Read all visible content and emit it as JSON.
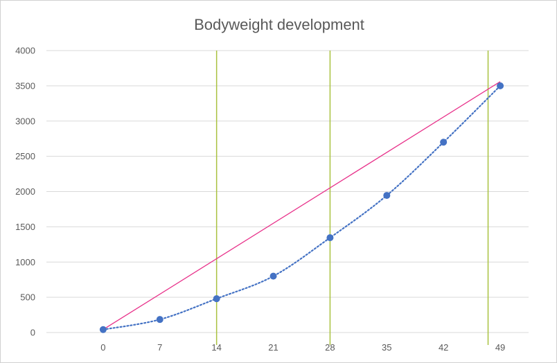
{
  "chart_data": {
    "type": "scatter",
    "title": "Bodyweight development",
    "xlabel": "",
    "ylabel": "",
    "xlim": [
      -7,
      52.5
    ],
    "ylim": [
      0,
      4000
    ],
    "xticks": [
      0,
      7,
      14,
      21,
      28,
      35,
      42,
      49
    ],
    "yticks": [
      0,
      500,
      1000,
      1500,
      2000,
      2500,
      3000,
      3500,
      4000
    ],
    "grid": "horizontal",
    "legend": "none",
    "series": [
      {
        "x": [
          0,
          7,
          14,
          21,
          28,
          35,
          42,
          49
        ],
        "values": [
          42,
          185,
          480,
          800,
          1345,
          1945,
          2700,
          3500
        ],
        "color": "#4472C4",
        "marker": "circle",
        "trendline": "dotted polynomial"
      }
    ],
    "reference_line": {
      "x": [
        0,
        49
      ],
      "values": [
        42,
        3560
      ],
      "color": "#E8318A"
    },
    "vertical_lines": {
      "x": [
        14,
        28,
        47.5
      ],
      "color": "#A9C23F"
    }
  }
}
